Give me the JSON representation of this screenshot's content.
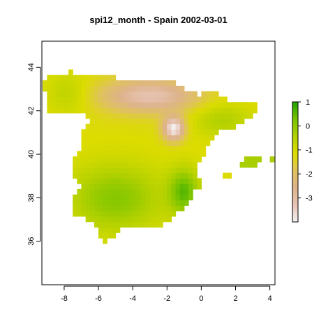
{
  "title": "spi12_month - Spain 2002-03-01",
  "map": {
    "x_ticks": [
      -8,
      -6,
      -4,
      -2,
      0,
      2,
      4
    ],
    "y_ticks": [
      36,
      38,
      40,
      42,
      44
    ],
    "x_range": [
      -9.3,
      4.3
    ],
    "y_range": [
      34.0,
      45.2
    ]
  },
  "legend": {
    "ticks": [
      1,
      0,
      -1,
      -2,
      -3
    ],
    "value_range": [
      -4.0,
      1.0
    ],
    "colors": [
      "#f2f2f2",
      "#e7c3b4",
      "#ddb38b",
      "#dfc25d",
      "#dcdc00",
      "#b3d100",
      "#79c400",
      "#20a000"
    ]
  },
  "colors": {
    "dry_extreme": "#f2f2f2",
    "dry": "#e7c3b4",
    "neutral": "#dcdc00",
    "wet": "#20a000"
  }
}
